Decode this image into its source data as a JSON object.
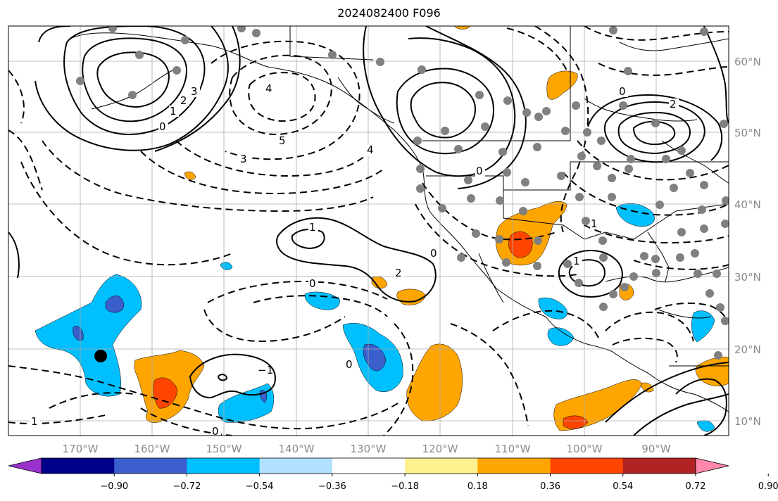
{
  "title": "2024082400 F096",
  "longitude_labels": [
    "170°W",
    "160°W",
    "150°W",
    "140°W",
    "130°W",
    "120°W",
    "110°W",
    "100°W",
    "90°W"
  ],
  "latitude_labels": [
    "60°N",
    "50°N",
    "40°N",
    "30°N",
    "20°N",
    "10°N"
  ],
  "colorbar": {
    "colors": [
      "#9932cc",
      "#00008b",
      "#3a5fcd",
      "#00bfff",
      "#b0e2ff",
      "#ffffff",
      "#fff08f",
      "#ffa500",
      "#ff4500",
      "#b22222",
      "#ff88aa"
    ],
    "tick_labels": [
      "−0.90",
      "−0.72",
      "−0.54",
      "−0.36",
      "−0.18",
      "0.18",
      "0.36",
      "0.54",
      "0.72",
      "0.90"
    ]
  },
  "contour_labels": [
    "0",
    "1",
    "2",
    "3",
    "4",
    "5",
    "3",
    "4",
    "0",
    "1",
    "0",
    "−1",
    "0",
    "0",
    "1",
    "2",
    "0",
    "1",
    "1",
    "0",
    "2"
  ],
  "station_marker_color": "#808080"
}
